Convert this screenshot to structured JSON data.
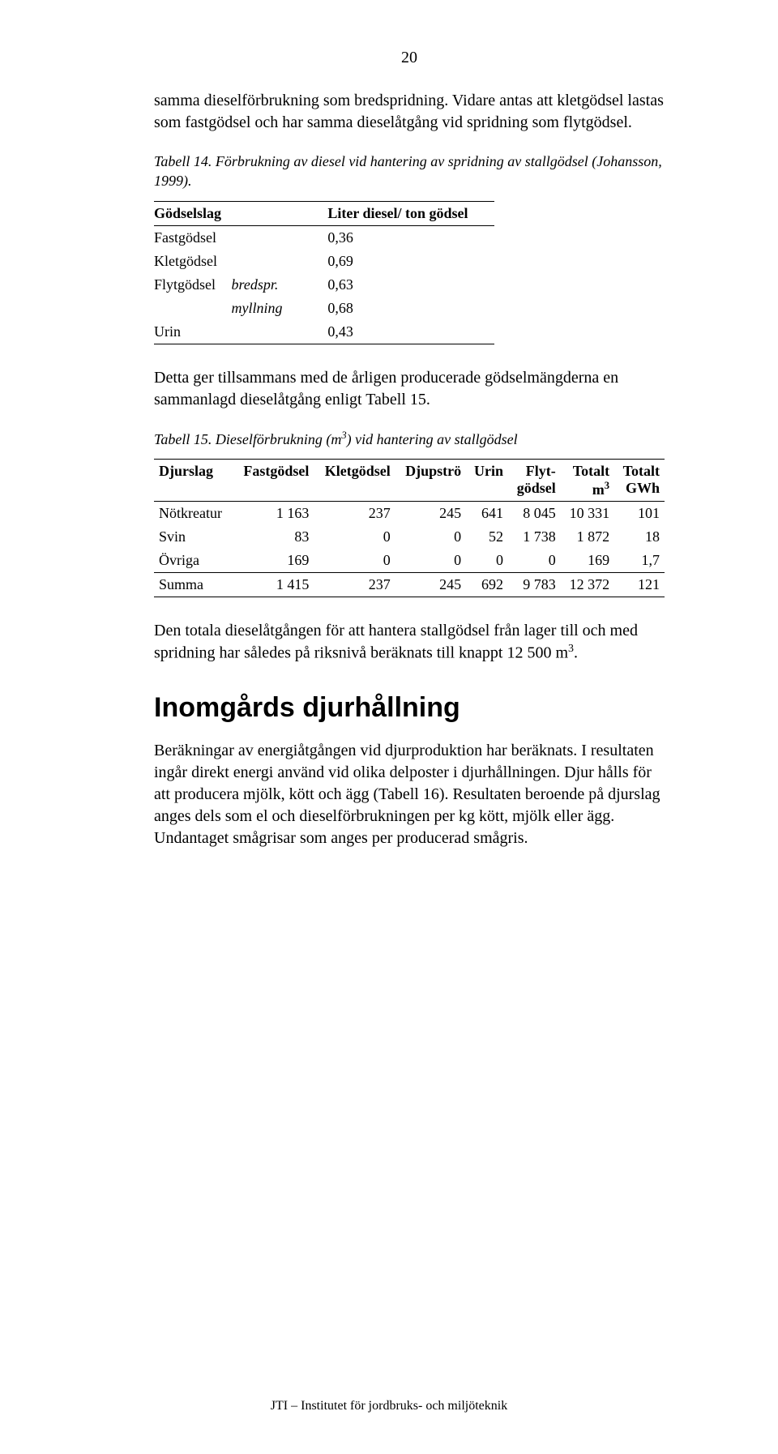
{
  "page_number": "20",
  "para1": "samma dieselförbrukning som bredspridning. Vidare antas att kletgödsel lastas som fastgödsel och har samma dieselåtgång vid spridning som flytgödsel.",
  "table14": {
    "caption": "Tabell 14. Förbrukning av diesel vid hantering av spridning av stallgödsel (Johansson, 1999).",
    "head_col1": "Gödselslag",
    "head_col2": "Liter diesel/ ton gödsel",
    "rows": {
      "r0": {
        "a": "Fastgödsel",
        "b": "",
        "c": "0,36"
      },
      "r1": {
        "a": "Kletgödsel",
        "b": "",
        "c": "0,69"
      },
      "r2": {
        "a": "Flytgödsel",
        "b": "bredspr.",
        "c": "0,63"
      },
      "r3": {
        "a": "",
        "b": "myllning",
        "c": "0,68"
      },
      "r4": {
        "a": "Urin",
        "b": "",
        "c": "0,43"
      }
    }
  },
  "para2": "Detta ger tillsammans med de årligen producerade gödselmängderna en sammanlagd dieselåtgång enligt Tabell 15.",
  "table15": {
    "caption_pre": "Tabell 15. Dieselförbrukning (m",
    "caption_sup": "3",
    "caption_post": ") vid hantering av stallgödsel",
    "head": {
      "c0": "Djurslag",
      "c1": "Fastgödsel",
      "c2": "Kletgödsel",
      "c3": "Djupströ",
      "c4": "Urin",
      "c5a": "Flyt-",
      "c5b": "gödsel",
      "c6a": "Totalt",
      "c6b_pre": "m",
      "c6b_sup": "3",
      "c7a": "Totalt",
      "c7b": "GWh"
    },
    "rows": {
      "r0": {
        "a": "Nötkreatur",
        "b": "1 163",
        "c": "237",
        "d": "245",
        "e": "641",
        "f": "8 045",
        "g": "10 331",
        "h": "101"
      },
      "r1": {
        "a": "Svin",
        "b": "83",
        "c": "0",
        "d": "0",
        "e": "52",
        "f": "1 738",
        "g": "1 872",
        "h": "18"
      },
      "r2": {
        "a": "Övriga",
        "b": "169",
        "c": "0",
        "d": "0",
        "e": "0",
        "f": "0",
        "g": "169",
        "h": "1,7"
      },
      "r3": {
        "a": "Summa",
        "b": "1 415",
        "c": "237",
        "d": "245",
        "e": "692",
        "f": "9 783",
        "g": "12 372",
        "h": "121"
      }
    }
  },
  "para3_pre": "Den totala dieselåtgången för att hantera stallgödsel från lager till och med spridning har således på riksnivå beräknats till knappt 12 500 m",
  "para3_sup": "3",
  "para3_post": ".",
  "section_heading": "Inomgårds djurhållning",
  "para4": "Beräkningar av energiåtgången vid djurproduktion har beräknats. I resultaten ingår direkt energi använd vid olika delposter i djurhållningen. Djur hålls för att producera mjölk, kött och ägg (Tabell 16). Resultaten beroende på djurslag anges dels som el och dieselförbrukningen per kg kött, mjölk eller ägg. Undantaget smågrisar som anges per producerad smågris.",
  "footer": "JTI – Institutet för jordbruks- och miljöteknik"
}
